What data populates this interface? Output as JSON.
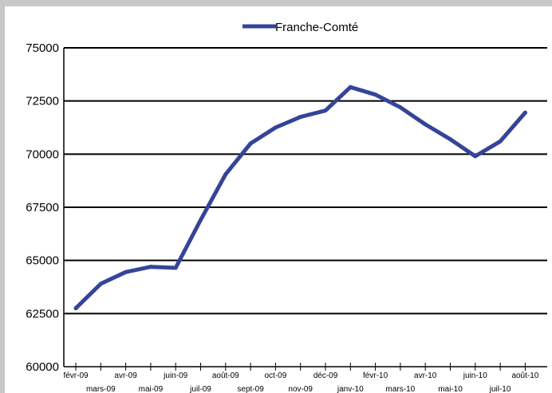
{
  "chart_data": {
    "type": "line",
    "title": "",
    "xlabel": "",
    "ylabel": "",
    "ylim": [
      60000,
      75000
    ],
    "yticks": [
      "60000",
      "62500",
      "65000",
      "67500",
      "70000",
      "72500",
      "75000"
    ],
    "grid": true,
    "legend_position": "top-center",
    "categories": [
      "févr-09",
      "mars-09",
      "avr-09",
      "mai-09",
      "juin-09",
      "juil-09",
      "août-09",
      "sept-09",
      "oct-09",
      "nov-09",
      "déc-09",
      "janv-10",
      "févr-10",
      "mars-10",
      "avr-10",
      "mai-10",
      "juin-10",
      "juil-10",
      "août-10"
    ],
    "series": [
      {
        "name": "Franche-Comté",
        "color": "#34449a",
        "values": [
          62750,
          63900,
          64450,
          64700,
          64650,
          66900,
          69050,
          70500,
          71250,
          71750,
          72050,
          73150,
          72800,
          72200,
          71400,
          70700,
          69900,
          70600,
          71950
        ]
      }
    ]
  }
}
